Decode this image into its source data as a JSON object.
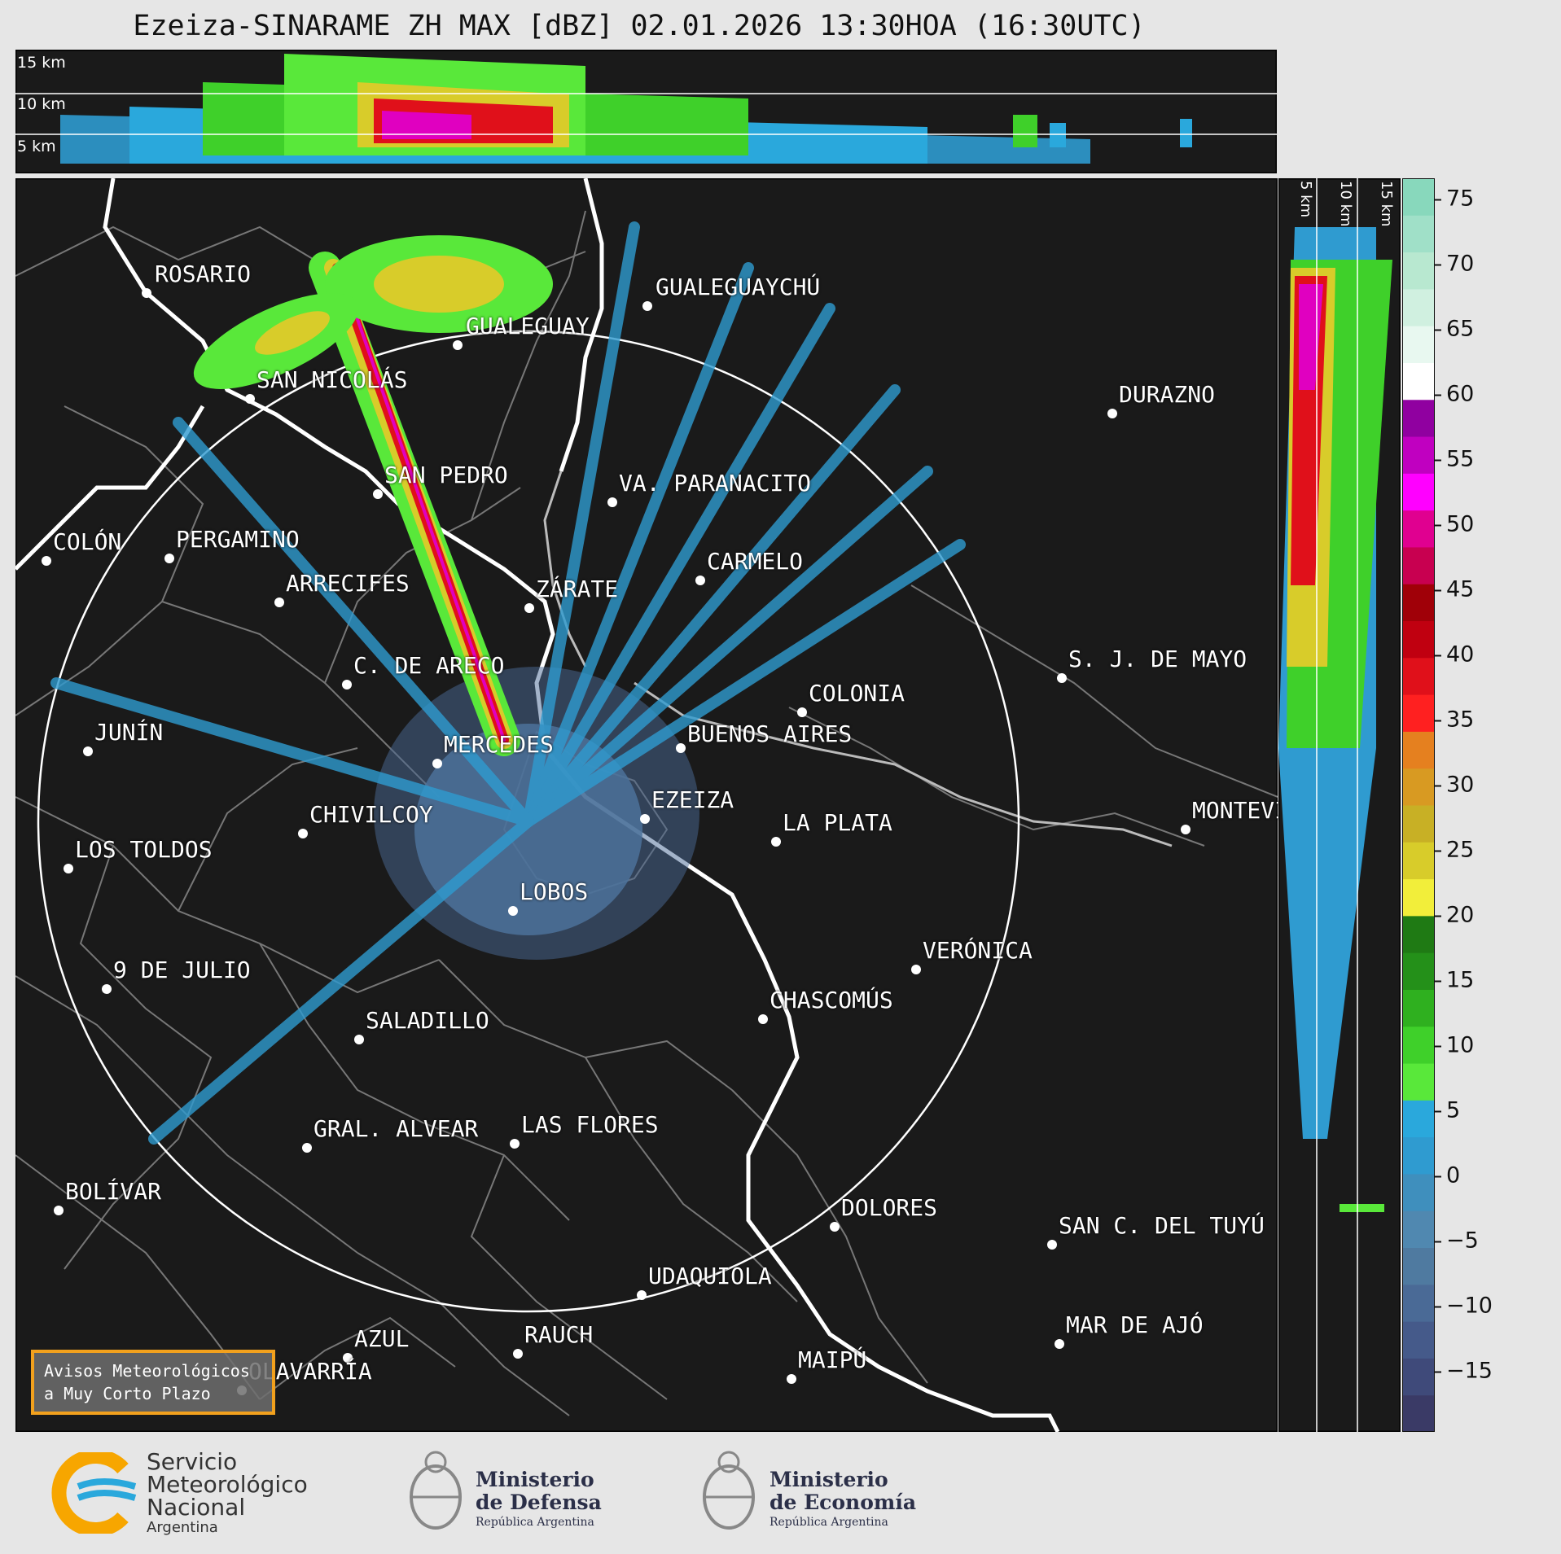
{
  "title": "Ezeiza-SINARAME ZH MAX [dBZ] 02.01.2026 13:30HOA (16:30UTC)",
  "top_panel": {
    "height_labels": [
      "15 km",
      "10 km",
      "5 km"
    ]
  },
  "side_panel": {
    "height_labels": [
      "5 km",
      "10 km",
      "15 km"
    ]
  },
  "colorbar": {
    "ticks": [
      "75",
      "70",
      "65",
      "60",
      "55",
      "50",
      "45",
      "40",
      "35",
      "30",
      "25",
      "20",
      "15",
      "10",
      "5",
      "0",
      "−5",
      "−10",
      "−15"
    ],
    "colors": [
      "#3a3a66",
      "#3f4a7a",
      "#455a8a",
      "#4a6a96",
      "#4f7aa0",
      "#5088b0",
      "#3f8fbd",
      "#2f9bd0",
      "#2aa8dc",
      "#59e83a",
      "#3fd02a",
      "#2fb01f",
      "#249019",
      "#1f7a14",
      "#f2ee3a",
      "#d8cc2a",
      "#c8b025",
      "#d89a22",
      "#e5801f",
      "#ff2020",
      "#e0101a",
      "#c00010",
      "#a00008",
      "#c80050",
      "#e00090",
      "#ff00ff",
      "#c000c0",
      "#9000a0",
      "#ffffff",
      "#e8f8f0",
      "#d0f0e0",
      "#b8e8d0",
      "#a0e0c8",
      "#88d8bc"
    ]
  },
  "cities": [
    {
      "name": "ROSARIO"
    },
    {
      "name": "GUALEGUAYCHÚ"
    },
    {
      "name": "GUALEGUAY"
    },
    {
      "name": "SAN NICOLÁS"
    },
    {
      "name": "DURAZNO"
    },
    {
      "name": "SAN PEDRO"
    },
    {
      "name": "VA. PARANACITO"
    },
    {
      "name": "COLÓN"
    },
    {
      "name": "PERGAMINO"
    },
    {
      "name": "CARMELO"
    },
    {
      "name": "ARRECIFES"
    },
    {
      "name": "ZÁRATE"
    },
    {
      "name": "S. J. DE MAYO"
    },
    {
      "name": "C. DE ARECO"
    },
    {
      "name": "COLONIA"
    },
    {
      "name": "JUNÍN"
    },
    {
      "name": "BUENOS AIRES"
    },
    {
      "name": "MERCEDES"
    },
    {
      "name": "EZEIZA"
    },
    {
      "name": "MONTEVIDEO"
    },
    {
      "name": "CHIVILCOY"
    },
    {
      "name": "LA PLATA"
    },
    {
      "name": "LOS TOLDOS"
    },
    {
      "name": "LOBOS"
    },
    {
      "name": "VERÓNICA"
    },
    {
      "name": "9 DE JULIO"
    },
    {
      "name": "CHASCOMÚS"
    },
    {
      "name": "SALADILLO"
    },
    {
      "name": "GRAL. ALVEAR"
    },
    {
      "name": "LAS FLORES"
    },
    {
      "name": "BOLÍVAR"
    },
    {
      "name": "DOLORES"
    },
    {
      "name": "SAN C. DEL TUYÚ"
    },
    {
      "name": "UDAQUIOLA"
    },
    {
      "name": "MAR DE AJÓ"
    },
    {
      "name": "AZUL"
    },
    {
      "name": "RAUCH"
    },
    {
      "name": "OLAVARRÍA"
    },
    {
      "name": "MAIPÚ"
    }
  ],
  "warning_box": {
    "line1": "Avisos Meteorológicos",
    "line2": "a Muy Corto Plazo"
  },
  "footer": {
    "smn": {
      "line1": "Servicio",
      "line2": "Meteorológico",
      "line3": "Nacional",
      "line4": "Argentina"
    },
    "defensa": {
      "line1": "Ministerio",
      "line2": "de Defensa",
      "line3": "República Argentina"
    },
    "economia": {
      "line1": "Ministerio",
      "line2": "de Economía",
      "line3": "República Argentina"
    }
  }
}
